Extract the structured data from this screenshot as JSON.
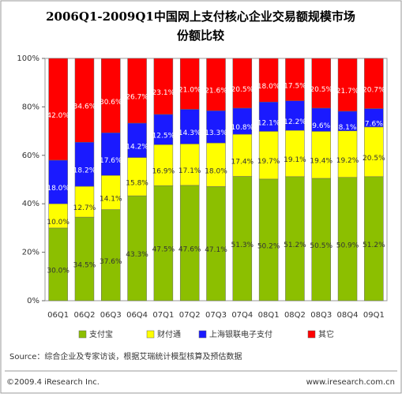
{
  "chart_data": {
    "type": "stacked_bar",
    "title": [
      "2006Q1-2009Q1中国网上支付核心企业交易额规模市场",
      "份额比较"
    ],
    "categories": [
      "06Q1",
      "06Q2",
      "06Q3",
      "06Q4",
      "07Q1",
      "07Q2",
      "07Q3",
      "07Q4",
      "08Q1",
      "08Q2",
      "08Q3",
      "08Q4",
      "09Q1"
    ],
    "series": [
      {
        "name": "支付宝",
        "color": "#8cbf00",
        "values": [
          30.0,
          34.5,
          37.6,
          43.3,
          47.5,
          47.6,
          47.1,
          51.3,
          50.2,
          51.2,
          50.5,
          50.9,
          51.2
        ],
        "value_labels": [
          "30.0%",
          "34.5%",
          "37.6%",
          "43.3%",
          "47.5%",
          "47.6%",
          "47.1%",
          "51.3%",
          "50.2%",
          "51.2%",
          "50.5%",
          "50.9%",
          "51.2%"
        ]
      },
      {
        "name": "财付通",
        "color": "#ffff00",
        "values": [
          10.0,
          12.7,
          14.1,
          15.8,
          16.9,
          17.1,
          18.0,
          17.4,
          19.7,
          19.1,
          19.4,
          19.2,
          20.5
        ],
        "value_labels": [
          "10.0%",
          "12.7%",
          "14.1%",
          "15.8%",
          "16.9%",
          "17.1%",
          "18.0%",
          "17.4%",
          "19.7%",
          "19.1%",
          "19.4%",
          "19.2%",
          "20.5%"
        ]
      },
      {
        "name": "上海银联电子支付",
        "color": "#1a1aff",
        "values": [
          18.0,
          18.2,
          17.6,
          14.2,
          12.5,
          14.3,
          13.3,
          10.8,
          12.1,
          12.2,
          9.6,
          8.1,
          7.6
        ],
        "value_labels": [
          "18.0%",
          "18.2%",
          "17.6%",
          "14.2%",
          "12.5%",
          "14.3%",
          "13.3%",
          "10.8%",
          "12.1%",
          "12.2%",
          "9.6%",
          "8.1%",
          "7.6%"
        ]
      },
      {
        "name": "其它",
        "color": "#ff0000",
        "values": [
          42.0,
          34.6,
          30.6,
          26.7,
          23.1,
          21.0,
          21.6,
          20.5,
          18.0,
          17.5,
          20.5,
          21.7,
          20.7
        ],
        "value_labels": [
          "42.0%",
          "34.6%",
          "30.6%",
          "26.7%",
          "23.1%",
          "21.0%",
          "21.6%",
          "20.5%",
          "18.0%",
          "17.5%",
          "20.5%",
          "21.7%",
          "20.7%"
        ]
      }
    ],
    "ylim": [
      0,
      100
    ],
    "yticks": [
      {
        "value": 0,
        "label": "0%"
      },
      {
        "value": 20,
        "label": "20%"
      },
      {
        "value": 40,
        "label": "40%"
      },
      {
        "value": 60,
        "label": "60%"
      },
      {
        "value": 80,
        "label": "80%"
      },
      {
        "value": 100,
        "label": "100%"
      }
    ],
    "grid": false,
    "source": "Source：综合企业及专家访谈，根据艾瑞统计模型核算及预估数据",
    "copyright": "©2009.4 iResearch Inc.",
    "website": "www.iresearch.com.cn"
  }
}
